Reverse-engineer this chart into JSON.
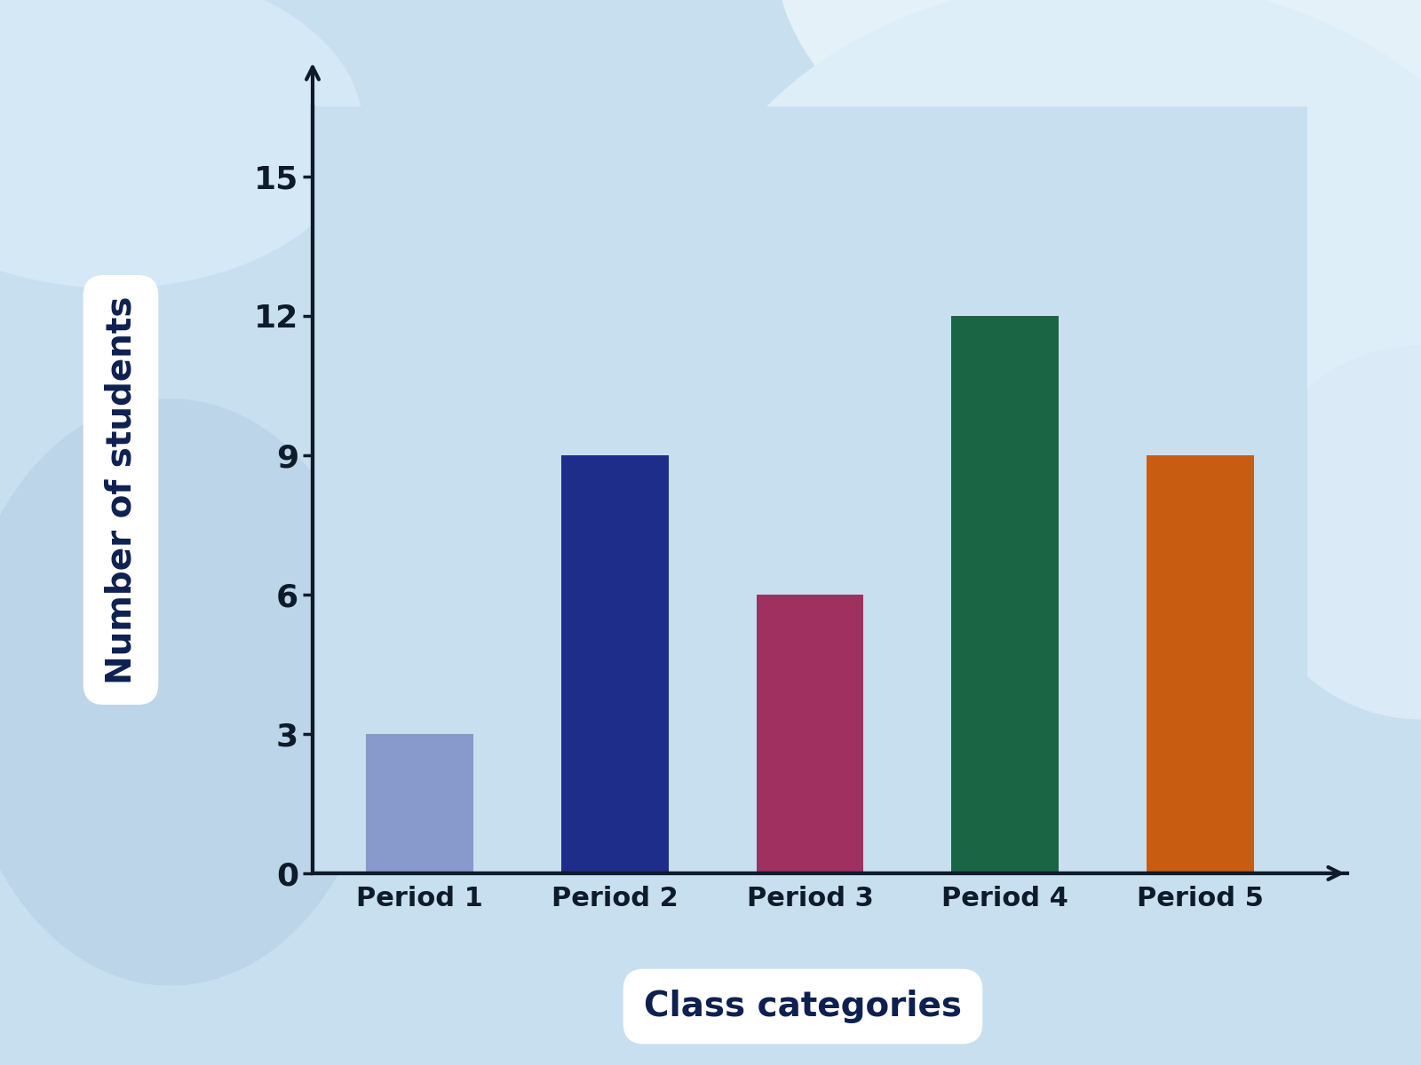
{
  "categories": [
    "Period 1",
    "Period 2",
    "Period 3",
    "Period 4",
    "Period 5"
  ],
  "values": [
    3,
    9,
    6,
    12,
    9
  ],
  "bar_colors": [
    "#8899cc",
    "#1e2d8a",
    "#a03060",
    "#1a6644",
    "#c85c10"
  ],
  "background_color": "#c8dff0",
  "blob1_color": "#daeaf7",
  "blob2_color": "#e5f1f9",
  "ylabel": "Number of students",
  "xlabel": "Class categories",
  "yticks": [
    0,
    3,
    6,
    9,
    12,
    15
  ],
  "ylim": [
    0,
    16.5
  ],
  "axis_color": "#0d1b2a",
  "tick_color": "#0d1b2a",
  "label_color": "#0d2050",
  "ylabel_fontsize": 28,
  "xlabel_fontsize": 28,
  "tick_fontsize": 26,
  "xtick_fontsize": 22,
  "box_color": "#ffffff"
}
